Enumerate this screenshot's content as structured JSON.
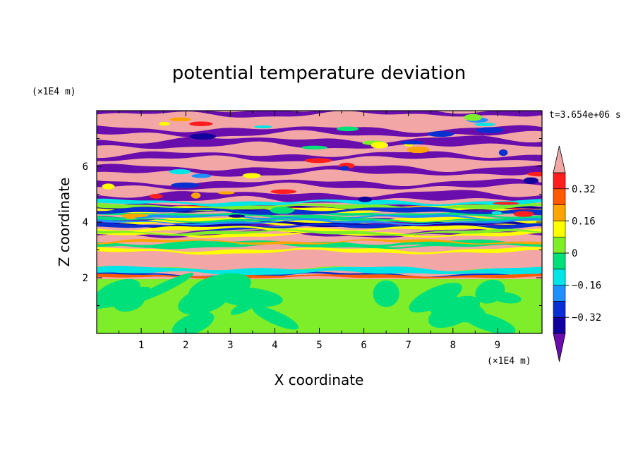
{
  "chart_data": {
    "type": "heatmap",
    "title": "potential temperature deviation",
    "xlabel": "X coordinate",
    "ylabel": "Z coordinate",
    "x_unit": "(×1E4 m)",
    "y_unit": "(×1E4 m)",
    "time_label": "t=3.654e+06 s",
    "xlim": [
      0,
      10
    ],
    "ylim": [
      0,
      8
    ],
    "x_ticks": [
      1,
      2,
      3,
      4,
      5,
      6,
      7,
      8,
      9
    ],
    "y_ticks": [
      2,
      4,
      6
    ],
    "colorbar": {
      "levels": [
        -0.4,
        -0.32,
        -0.24,
        -0.16,
        -0.08,
        0,
        0.08,
        0.16,
        0.24,
        0.32,
        0.4
      ],
      "tick_labels": [
        "0.32",
        "0.16",
        "0",
        "−0.16",
        "−0.32"
      ],
      "tick_values": [
        0.32,
        0.16,
        0,
        -0.16,
        -0.32
      ],
      "colors_low_to_high": [
        "#6a0dad",
        "#12009c",
        "#0a2fd0",
        "#1e90ff",
        "#00e6e6",
        "#00e07a",
        "#7fee2a",
        "#ffff00",
        "#ffa500",
        "#ff5a00",
        "#ff1e1e",
        "#f2a6a6"
      ],
      "extend": "both"
    },
    "regions": {
      "boundary_layer_top": 1.95,
      "boundary_layer_colors": [
        "#7fee2a",
        "#00e07a"
      ],
      "upper_layer_colors": [
        "#f2a6a6",
        "#6a0dad"
      ]
    }
  }
}
